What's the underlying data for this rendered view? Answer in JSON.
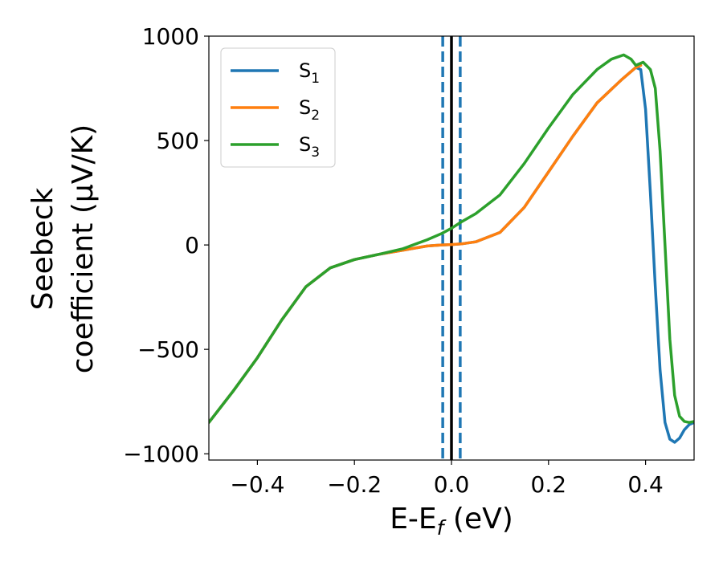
{
  "chart_data": {
    "type": "line",
    "xlabel": "E-E",
    "xlabel_sub": "f",
    "xlabel_unit": " (eV)",
    "ylabel_line1": "Seebeck",
    "ylabel_line2": "coefficient  (μV/K)",
    "xlim": [
      -0.5,
      0.5
    ],
    "ylim": [
      -1030,
      1000
    ],
    "xticks": [
      -0.4,
      -0.2,
      0.0,
      0.2,
      0.4
    ],
    "xtick_labels": [
      "−0.4",
      "−0.2",
      "0.0",
      "0.2",
      "0.4"
    ],
    "yticks": [
      -1000,
      -500,
      0,
      500,
      1000
    ],
    "ytick_labels": [
      "−1000",
      "−500",
      "0",
      "500",
      "1000"
    ],
    "grid": false,
    "legend_position": "top-left",
    "vertical_lines": [
      {
        "x": -0.018,
        "style": "dashed",
        "color": "#1f77b4"
      },
      {
        "x": 0.0,
        "style": "solid",
        "color": "#000000"
      },
      {
        "x": 0.018,
        "style": "dashed",
        "color": "#1f77b4"
      }
    ],
    "series": [
      {
        "name": "S",
        "sub": "1",
        "color": "#1f77b4",
        "x": [
          -0.5,
          -0.45,
          -0.4,
          -0.35,
          -0.3,
          -0.25,
          -0.2,
          -0.15,
          -0.1,
          -0.05,
          -0.02,
          0.0,
          0.02,
          0.05,
          0.1,
          0.15,
          0.2,
          0.25,
          0.3,
          0.35,
          0.38,
          0.39,
          0.4,
          0.41,
          0.42,
          0.43,
          0.44,
          0.45,
          0.46,
          0.47,
          0.48,
          0.49,
          0.5
        ],
        "y": [
          -850,
          -700,
          -540,
          -360,
          -200,
          -110,
          -70,
          -45,
          -25,
          -5,
          0,
          2,
          5,
          15,
          60,
          180,
          350,
          520,
          680,
          790,
          850,
          840,
          650,
          250,
          -200,
          -600,
          -850,
          -930,
          -945,
          -925,
          -885,
          -860,
          -850
        ]
      },
      {
        "name": "S",
        "sub": "2",
        "color": "#ff7f0e",
        "x": [
          -0.5,
          -0.45,
          -0.4,
          -0.35,
          -0.3,
          -0.25,
          -0.2,
          -0.15,
          -0.1,
          -0.05,
          -0.02,
          0.0,
          0.02,
          0.05,
          0.1,
          0.15,
          0.2,
          0.25,
          0.3,
          0.35,
          0.38,
          0.39
        ],
        "y": [
          -850,
          -700,
          -540,
          -360,
          -200,
          -110,
          -70,
          -45,
          -25,
          -5,
          0,
          2,
          5,
          15,
          60,
          180,
          350,
          520,
          680,
          790,
          850,
          860
        ]
      },
      {
        "name": "S",
        "sub": "3",
        "color": "#2ca02c",
        "x": [
          -0.5,
          -0.45,
          -0.4,
          -0.35,
          -0.3,
          -0.25,
          -0.2,
          -0.15,
          -0.1,
          -0.05,
          -0.02,
          0.0,
          0.02,
          0.05,
          0.1,
          0.15,
          0.2,
          0.25,
          0.3,
          0.33,
          0.355,
          0.37,
          0.38,
          0.395,
          0.41,
          0.42,
          0.43,
          0.44,
          0.45,
          0.46,
          0.47,
          0.48,
          0.49,
          0.5
        ],
        "y": [
          -850,
          -700,
          -540,
          -360,
          -200,
          -110,
          -70,
          -45,
          -18,
          25,
          55,
          80,
          110,
          150,
          240,
          390,
          560,
          720,
          840,
          890,
          910,
          890,
          860,
          875,
          840,
          750,
          450,
          0,
          -450,
          -720,
          -820,
          -845,
          -850,
          -845
        ]
      }
    ]
  }
}
